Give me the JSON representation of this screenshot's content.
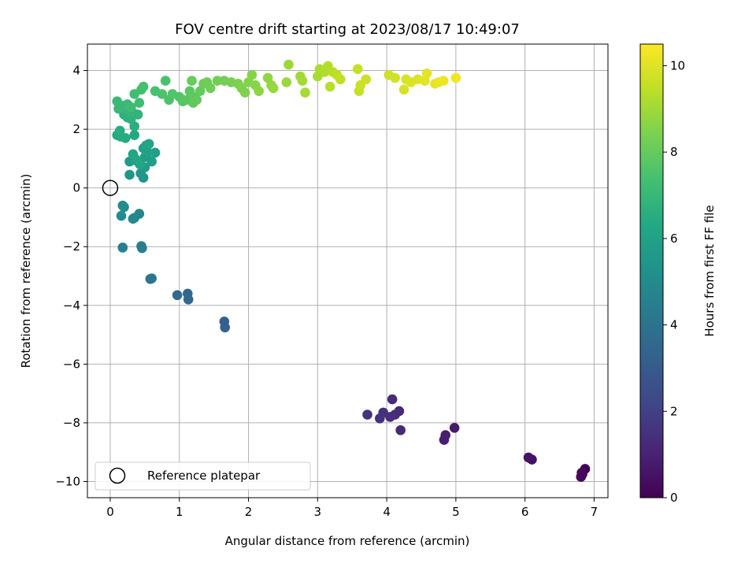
{
  "chart_data": {
    "type": "scatter",
    "title": "FOV centre drift starting at 2023/08/17 10:49:07",
    "xlabel": "Angular distance from reference (arcmin)",
    "ylabel": "Rotation from reference (arcmin)",
    "xlim": [
      -0.33,
      7.2
    ],
    "ylim": [
      -10.55,
      4.9
    ],
    "x_ticks": [
      "0",
      "1",
      "2",
      "3",
      "4",
      "5",
      "6",
      "7"
    ],
    "y_ticks": [
      "−10",
      "−8",
      "−6",
      "−4",
      "−2",
      "0",
      "2",
      "4"
    ],
    "grid": true,
    "legend": {
      "placement": "lower-left",
      "entries": [
        "Reference platepar"
      ]
    },
    "colorbar": {
      "label": "Hours from first FF file",
      "colormap": "viridis",
      "range": [
        0,
        10.5
      ],
      "ticks": [
        "0",
        "2",
        "4",
        "6",
        "8",
        "10"
      ]
    },
    "reference_point": {
      "x": 0,
      "y": 0
    },
    "points": [
      [
        6.87,
        -9.57,
        0.1
      ],
      [
        6.82,
        -9.7,
        0.15
      ],
      [
        6.81,
        -9.84,
        0.2
      ],
      [
        6.83,
        -9.75,
        0.25
      ],
      [
        6.1,
        -9.25,
        0.45
      ],
      [
        6.05,
        -9.18,
        0.5
      ],
      [
        4.98,
        -8.17,
        0.8
      ],
      [
        4.85,
        -8.42,
        0.85
      ],
      [
        4.83,
        -8.58,
        0.9
      ],
      [
        4.2,
        -8.25,
        1.2
      ],
      [
        4.18,
        -7.6,
        1.25
      ],
      [
        4.08,
        -7.2,
        1.3
      ],
      [
        4.12,
        -7.72,
        1.35
      ],
      [
        4.05,
        -7.8,
        1.4
      ],
      [
        3.95,
        -7.65,
        1.45
      ],
      [
        3.9,
        -7.85,
        1.5
      ],
      [
        3.72,
        -7.72,
        1.55
      ],
      [
        1.65,
        -4.55,
        3.2
      ],
      [
        1.66,
        -4.75,
        3.25
      ],
      [
        1.12,
        -3.6,
        3.5
      ],
      [
        1.13,
        -3.8,
        3.55
      ],
      [
        0.97,
        -3.65,
        3.6
      ],
      [
        0.58,
        -3.1,
        4.05
      ],
      [
        0.6,
        -3.08,
        4.1
      ],
      [
        0.46,
        -2.05,
        4.4
      ],
      [
        0.45,
        -1.98,
        4.45
      ],
      [
        0.18,
        -2.03,
        4.55
      ],
      [
        0.42,
        -0.88,
        4.8
      ],
      [
        0.35,
        -1.02,
        4.85
      ],
      [
        0.33,
        -1.05,
        4.9
      ],
      [
        0.18,
        -0.6,
        5.0
      ],
      [
        0.2,
        -0.65,
        5.05
      ],
      [
        0.16,
        -0.95,
        5.1
      ],
      [
        0.28,
        0.45,
        5.45
      ],
      [
        0.48,
        0.35,
        5.5
      ],
      [
        0.44,
        0.5,
        5.55
      ],
      [
        0.28,
        0.9,
        5.6
      ],
      [
        0.35,
        0.95,
        5.65
      ],
      [
        0.4,
        0.9,
        5.7
      ],
      [
        0.5,
        0.7,
        5.75
      ],
      [
        0.6,
        0.9,
        5.8
      ],
      [
        0.5,
        1.05,
        5.85
      ],
      [
        0.55,
        1.2,
        5.9
      ],
      [
        0.65,
        1.2,
        5.95
      ],
      [
        0.48,
        1.35,
        6.0
      ],
      [
        0.52,
        1.45,
        6.05
      ],
      [
        0.56,
        1.5,
        6.1
      ],
      [
        0.33,
        1.15,
        6.15
      ],
      [
        0.43,
        0.8,
        6.2
      ],
      [
        0.36,
        1.0,
        6.25
      ],
      [
        0.35,
        1.8,
        6.3
      ],
      [
        0.1,
        1.8,
        6.35
      ],
      [
        0.15,
        1.75,
        6.4
      ],
      [
        0.22,
        1.7,
        6.45
      ],
      [
        0.14,
        1.95,
        6.5
      ],
      [
        0.35,
        2.1,
        6.55
      ],
      [
        0.2,
        2.5,
        6.6
      ],
      [
        0.25,
        2.4,
        6.65
      ],
      [
        0.3,
        2.35,
        6.7
      ],
      [
        0.33,
        2.55,
        6.75
      ],
      [
        0.4,
        2.5,
        6.8
      ],
      [
        0.28,
        2.6,
        6.85
      ],
      [
        0.22,
        2.7,
        6.9
      ],
      [
        0.18,
        2.8,
        6.95
      ],
      [
        0.12,
        2.7,
        7.0
      ],
      [
        0.1,
        2.95,
        7.05
      ],
      [
        0.25,
        2.85,
        7.1
      ],
      [
        0.3,
        2.75,
        7.15
      ],
      [
        0.42,
        2.9,
        7.2
      ],
      [
        0.35,
        3.2,
        7.25
      ],
      [
        0.45,
        3.35,
        7.3
      ],
      [
        0.48,
        3.45,
        7.35
      ],
      [
        0.65,
        3.3,
        7.4
      ],
      [
        0.8,
        3.65,
        7.45
      ],
      [
        0.75,
        3.2,
        7.5
      ],
      [
        0.85,
        3.0,
        7.55
      ],
      [
        0.9,
        3.2,
        7.6
      ],
      [
        1.0,
        3.1,
        7.65
      ],
      [
        1.05,
        2.95,
        7.7
      ],
      [
        1.1,
        3.0,
        7.75
      ],
      [
        1.15,
        3.3,
        7.8
      ],
      [
        1.2,
        3.1,
        7.85
      ],
      [
        1.2,
        2.9,
        7.9
      ],
      [
        1.25,
        3.0,
        7.95
      ],
      [
        1.3,
        3.3,
        8.0
      ],
      [
        1.18,
        3.65,
        8.05
      ],
      [
        1.35,
        3.55,
        8.1
      ],
      [
        1.4,
        3.6,
        8.15
      ],
      [
        1.45,
        3.4,
        8.2
      ],
      [
        1.55,
        3.65,
        8.25
      ],
      [
        1.65,
        3.65,
        8.3
      ],
      [
        1.75,
        3.6,
        8.35
      ],
      [
        1.85,
        3.55,
        8.4
      ],
      [
        1.9,
        3.4,
        8.45
      ],
      [
        1.95,
        3.25,
        8.5
      ],
      [
        2.0,
        3.6,
        8.55
      ],
      [
        2.05,
        3.85,
        8.6
      ],
      [
        2.1,
        3.5,
        8.65
      ],
      [
        2.15,
        3.3,
        8.7
      ],
      [
        2.28,
        3.75,
        8.75
      ],
      [
        2.33,
        3.5,
        8.8
      ],
      [
        2.36,
        3.4,
        8.85
      ],
      [
        2.55,
        3.6,
        8.9
      ],
      [
        2.58,
        4.2,
        8.95
      ],
      [
        2.75,
        3.8,
        9.0
      ],
      [
        2.78,
        3.65,
        9.05
      ],
      [
        2.82,
        3.25,
        9.1
      ],
      [
        3.0,
        3.8,
        9.15
      ],
      [
        3.03,
        4.05,
        9.2
      ],
      [
        3.1,
        3.95,
        9.25
      ],
      [
        3.15,
        4.15,
        9.3
      ],
      [
        3.18,
        3.45,
        9.35
      ],
      [
        3.22,
        3.95,
        9.4
      ],
      [
        3.28,
        3.85,
        9.45
      ],
      [
        3.33,
        3.7,
        9.5
      ],
      [
        3.58,
        4.05,
        9.55
      ],
      [
        3.6,
        3.3,
        9.6
      ],
      [
        3.62,
        3.5,
        9.65
      ],
      [
        3.7,
        3.7,
        9.7
      ],
      [
        4.03,
        3.85,
        9.75
      ],
      [
        4.12,
        3.75,
        9.8
      ],
      [
        4.25,
        3.35,
        9.85
      ],
      [
        4.28,
        3.7,
        9.9
      ],
      [
        4.35,
        3.6,
        9.95
      ],
      [
        4.45,
        3.7,
        10.0
      ],
      [
        4.55,
        3.65,
        10.05
      ],
      [
        4.58,
        3.9,
        10.1
      ],
      [
        4.7,
        3.55,
        10.15
      ],
      [
        4.75,
        3.6,
        10.2
      ],
      [
        4.82,
        3.65,
        10.25
      ],
      [
        5.0,
        3.75,
        10.3
      ]
    ]
  }
}
